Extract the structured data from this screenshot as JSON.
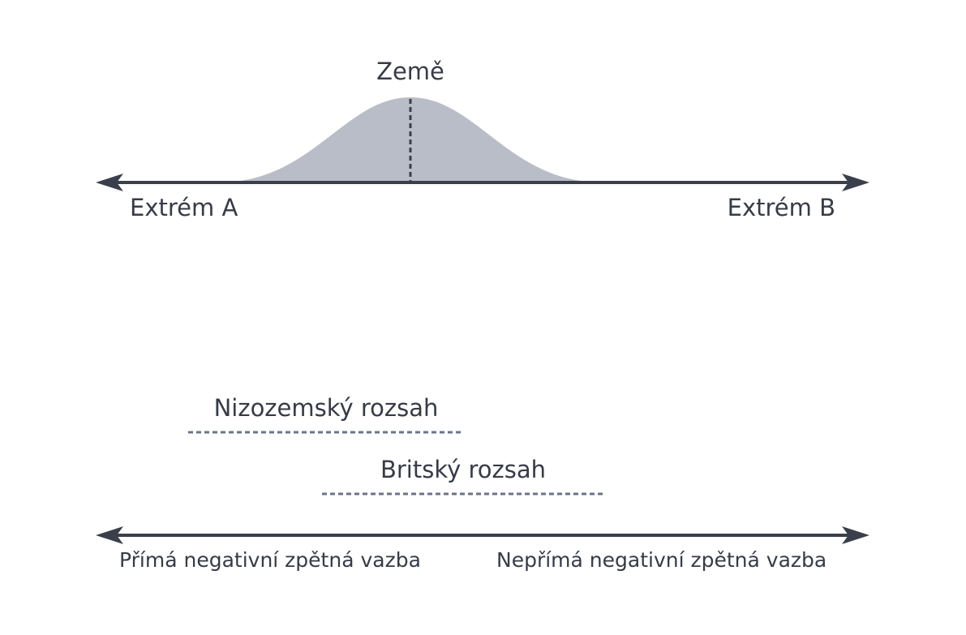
{
  "top_axis": {
    "peak_label": "Země",
    "left_label": "Extrém A",
    "right_label": "Extrém B"
  },
  "ranges": [
    {
      "label": "Nizozemský rozsah"
    },
    {
      "label": "Britský rozsah"
    }
  ],
  "bottom_axis": {
    "left_label": "Přímá negativní zpětná vazba",
    "right_label": "Nepřímá negativní zpětná vazba"
  }
}
